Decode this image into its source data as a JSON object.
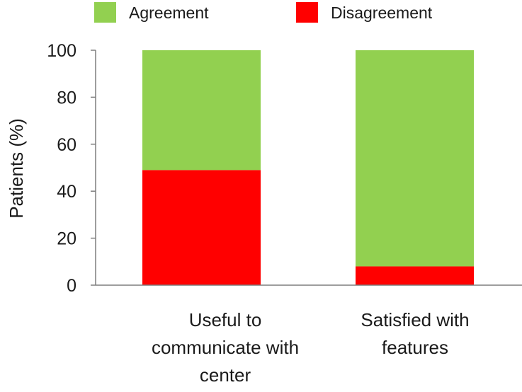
{
  "chart_data": {
    "type": "bar",
    "stacked": true,
    "categories": [
      [
        "Useful to",
        "communicate with",
        "center"
      ],
      [
        "Satisfied with",
        "features"
      ]
    ],
    "series": [
      {
        "name": "Disagreement",
        "color": "#ff0000",
        "values": [
          49,
          8
        ]
      },
      {
        "name": "Agreement",
        "color": "#92d050",
        "values": [
          51,
          92
        ]
      }
    ],
    "legend": [
      "Agreement",
      "Disagreement"
    ],
    "legend_placement": "top",
    "ylabel": "Patients (%)",
    "ylim": [
      0,
      100
    ],
    "yticks": [
      0,
      20,
      40,
      60,
      80,
      100
    ],
    "grid": false
  }
}
